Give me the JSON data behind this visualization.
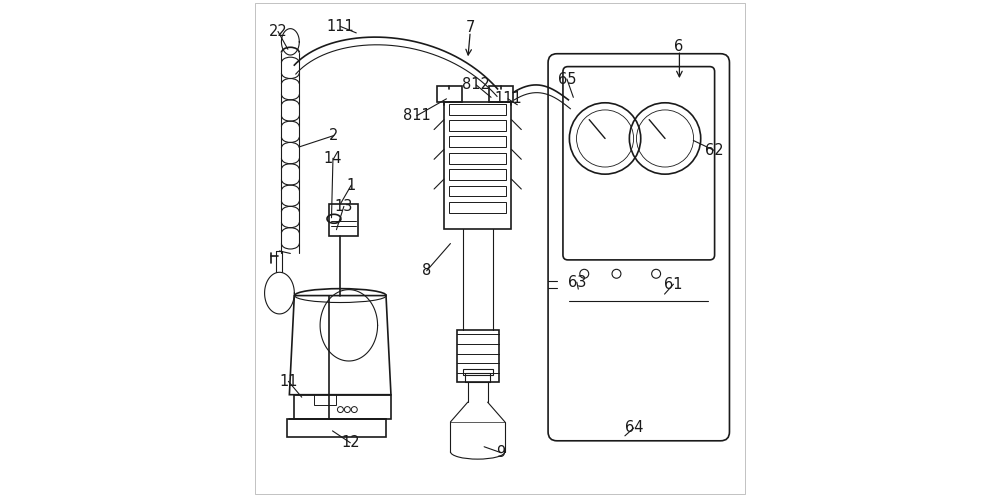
{
  "bg_color": "#ffffff",
  "line_color": "#1a1a1a",
  "label_color": "#1a1a1a",
  "figsize": [
    10.0,
    4.97
  ],
  "dpi": 100,
  "lw_main": 1.2,
  "lw_thin": 0.8,
  "label_fs": 10.5
}
